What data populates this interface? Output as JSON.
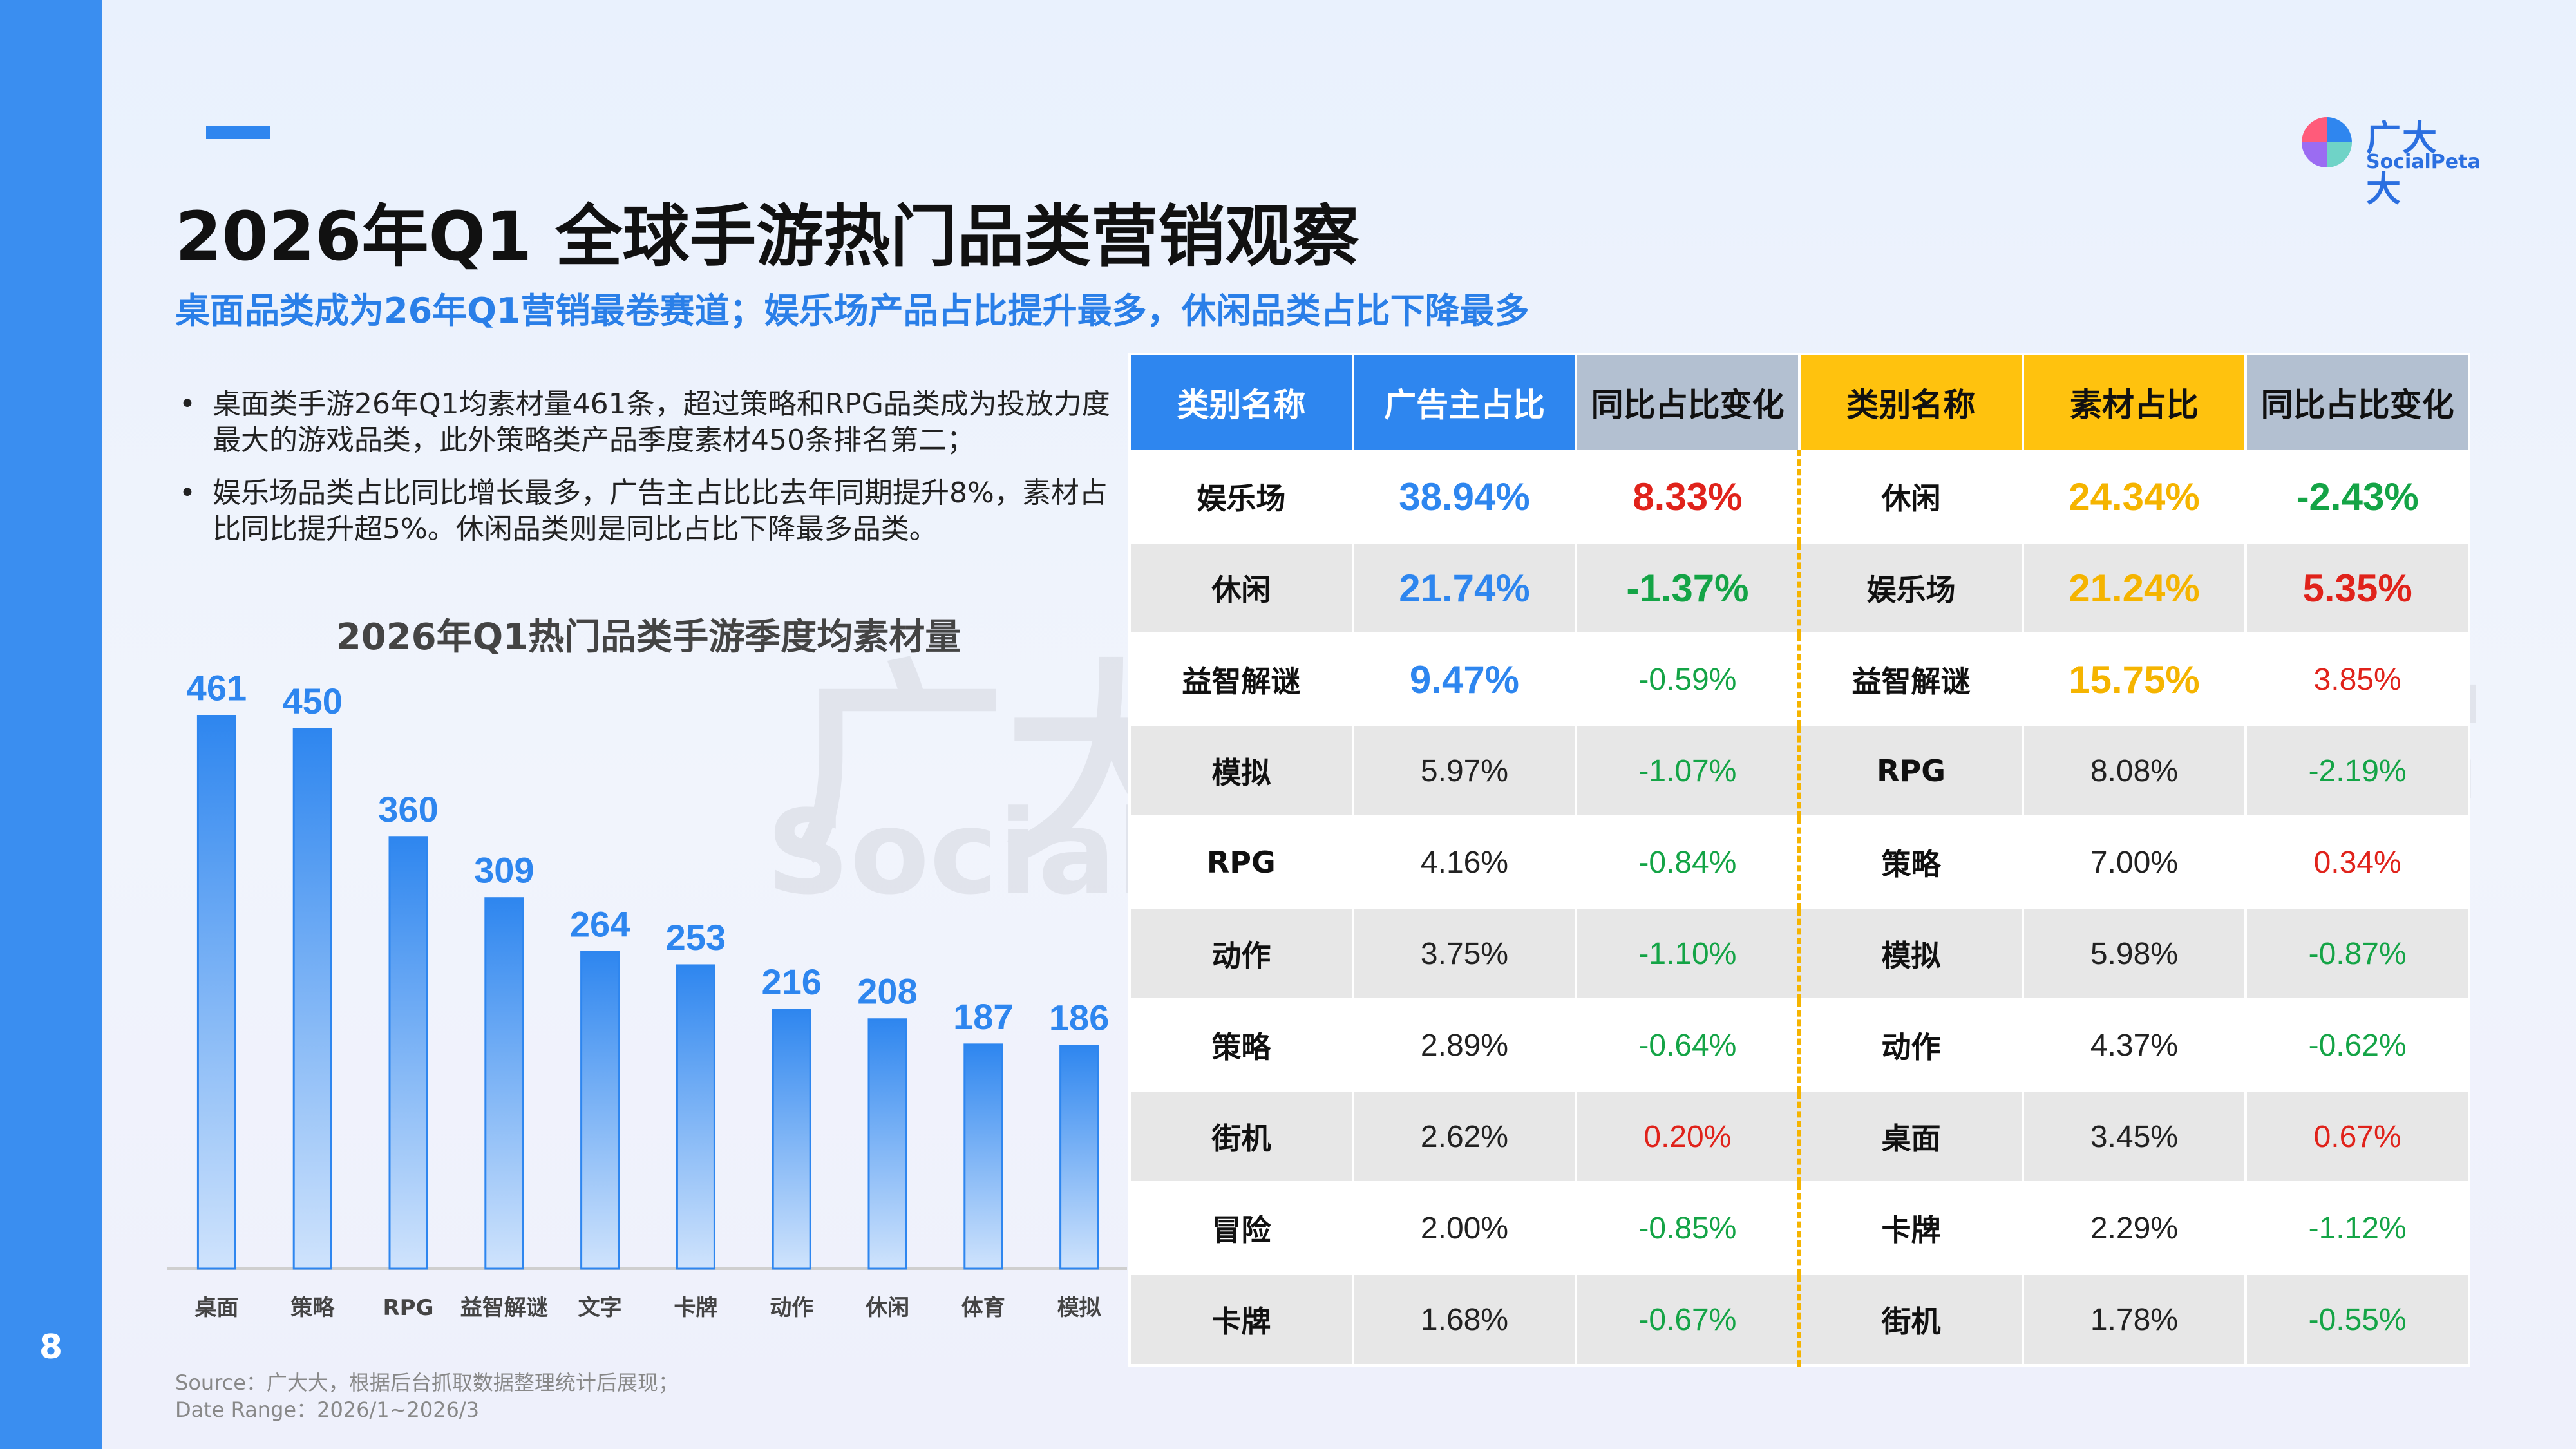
{
  "page_number": "8",
  "logo": {
    "cn": "广大大",
    "en": "SocialPeta",
    "colors": [
      "#ff5b7a",
      "#2f86ef",
      "#6fd3c7",
      "#9b6cf2"
    ]
  },
  "watermark": {
    "cn": "广大大",
    "en": "SocialPeta",
    "maf": "MAF",
    "reg": "®"
  },
  "title": "2026年Q1 全球手游热门品类营销观察",
  "subtitle": "桌面品类成为26年Q1营销最卷赛道；娱乐场产品占比提升最多，休闲品类占比下降最多",
  "bullets": [
    {
      "marker": "•",
      "text": "桌面类手游26年Q1均素材量461条，超过策略和RPG品类成为投放力度最大的游戏品类，此外策略类产品季度素材450条排名第二；"
    },
    {
      "marker": "•",
      "text": "娱乐场品类占比同比增长最多，广告主占比比去年同期提升8%，素材占比同比提升超5%。休闲品类则是同比占比下降最多品类。"
    }
  ],
  "chart_data": {
    "type": "bar",
    "title": "2026年Q1热门品类手游季度均素材量",
    "categories": [
      "桌面",
      "策略",
      "RPG",
      "益智解谜",
      "文字",
      "卡牌",
      "动作",
      "休闲",
      "体育",
      "模拟"
    ],
    "values": [
      461,
      450,
      360,
      309,
      264,
      253,
      216,
      208,
      187,
      186
    ],
    "value_labels": [
      "461",
      "450",
      "360",
      "309",
      "264",
      "253",
      "216",
      "208",
      "187",
      "186"
    ],
    "ylim": [
      0,
      500
    ],
    "grid": false,
    "legend": "none",
    "bar_color": "#2e86ef",
    "label_color": "#2e86ef"
  },
  "table": {
    "headers": [
      "类别名称",
      "广告主占比",
      "同比占比变化",
      "类别名称",
      "素材占比",
      "同比占比变化"
    ],
    "rows": [
      [
        "娱乐场",
        "38.94%",
        "8.33%",
        "休闲",
        "24.34%",
        "-2.43%"
      ],
      [
        "休闲",
        "21.74%",
        "-1.37%",
        "娱乐场",
        "21.24%",
        "5.35%"
      ],
      [
        "益智解谜",
        "9.47%",
        "-0.59%",
        "益智解谜",
        "15.75%",
        "3.85%"
      ],
      [
        "模拟",
        "5.97%",
        "-1.07%",
        "RPG",
        "8.08%",
        "-2.19%"
      ],
      [
        "RPG",
        "4.16%",
        "-0.84%",
        "策略",
        "7.00%",
        "0.34%"
      ],
      [
        "动作",
        "3.75%",
        "-1.10%",
        "模拟",
        "5.98%",
        "-0.87%"
      ],
      [
        "策略",
        "2.89%",
        "-0.64%",
        "动作",
        "4.37%",
        "-0.62%"
      ],
      [
        "街机",
        "2.62%",
        "0.20%",
        "桌面",
        "3.45%",
        "0.67%"
      ],
      [
        "冒险",
        "2.00%",
        "-0.85%",
        "卡牌",
        "2.29%",
        "-1.12%"
      ],
      [
        "卡牌",
        "1.68%",
        "-0.67%",
        "街机",
        "1.78%",
        "-0.55%"
      ]
    ],
    "colors": {
      "blue": "#2e86ef",
      "yellow": "#ffc20e",
      "positive": "#e0231b",
      "negative": "#14a446"
    }
  },
  "source": {
    "line1": "Source：广大大，根据后台抓取数据整理统计后展现；",
    "line2": "Date Range：2026/1~2026/3"
  }
}
